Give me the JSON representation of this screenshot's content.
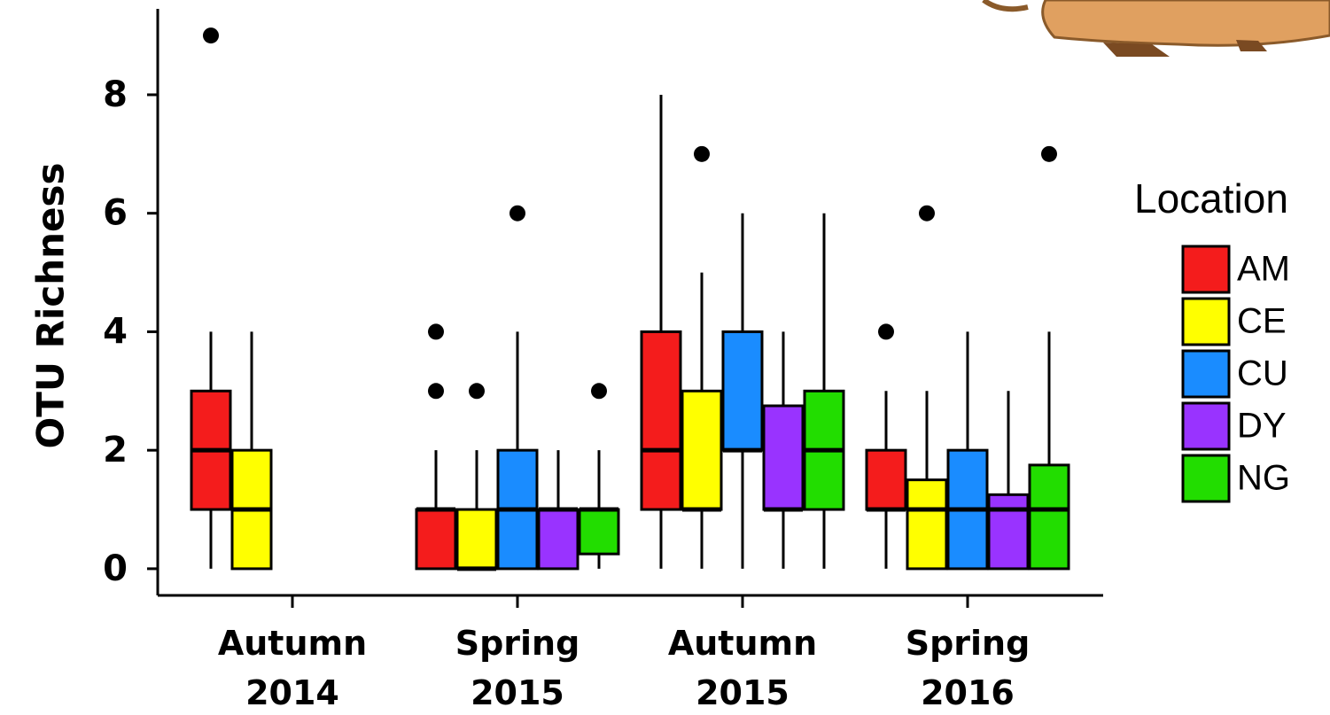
{
  "chart_data": {
    "type": "boxplot",
    "y_label": "OTU Richness",
    "legend_title": "Location",
    "categories": [
      [
        "Autumn",
        "2014"
      ],
      [
        "Spring",
        "2015"
      ],
      [
        "Autumn",
        "2015"
      ],
      [
        "Spring",
        "2016"
      ]
    ],
    "ylim": [
      -0.45,
      9.45
    ],
    "yticks": [
      0,
      2,
      4,
      6,
      8
    ],
    "series": [
      {
        "name": "AM",
        "color": "#f41c1c",
        "boxes": [
          {
            "min": 0,
            "q1": 1,
            "median": 2,
            "q3": 3,
            "max": 4,
            "outliers": [
              9
            ]
          },
          {
            "min": 0,
            "q1": 0,
            "median": 1,
            "q3": 1,
            "max": 2,
            "outliers": [
              4,
              3
            ]
          },
          {
            "min": 0,
            "q1": 1,
            "median": 2,
            "q3": 4,
            "max": 8,
            "outliers": []
          },
          {
            "min": 0,
            "q1": 1,
            "median": 1,
            "q3": 2,
            "max": 3,
            "outliers": [
              4
            ]
          }
        ]
      },
      {
        "name": "CE",
        "color": "#ffff00",
        "boxes": [
          {
            "min": 0,
            "q1": 0,
            "median": 1,
            "q3": 2,
            "max": 4,
            "outliers": []
          },
          {
            "min": 0,
            "q1": 0,
            "median": 0,
            "q3": 1,
            "max": 2,
            "outliers": [
              3
            ]
          },
          {
            "min": 0,
            "q1": 1,
            "median": 1,
            "q3": 3,
            "max": 5,
            "outliers": [
              7
            ]
          },
          {
            "min": 0,
            "q1": 0,
            "median": 1,
            "q3": 1.5,
            "max": 3,
            "outliers": [
              6
            ]
          }
        ]
      },
      {
        "name": "CU",
        "color": "#1a8cff",
        "boxes": [
          null,
          {
            "min": 0,
            "q1": 0,
            "median": 1,
            "q3": 2,
            "max": 4,
            "outliers": [
              6
            ]
          },
          {
            "min": 0,
            "q1": 2,
            "median": 2,
            "q3": 4,
            "max": 6,
            "outliers": []
          },
          {
            "min": 0,
            "q1": 0,
            "median": 1,
            "q3": 2,
            "max": 4,
            "outliers": []
          }
        ]
      },
      {
        "name": "DY",
        "color": "#9933ff",
        "boxes": [
          null,
          {
            "min": 0,
            "q1": 0,
            "median": 1,
            "q3": 1,
            "max": 2,
            "outliers": []
          },
          {
            "min": 0,
            "q1": 1,
            "median": 1,
            "q3": 2.75,
            "max": 4,
            "outliers": []
          },
          {
            "min": 0,
            "q1": 0,
            "median": 1,
            "q3": 1.25,
            "max": 3,
            "outliers": []
          }
        ]
      },
      {
        "name": "NG",
        "color": "#22dd00",
        "boxes": [
          null,
          {
            "min": 0,
            "q1": 0.25,
            "median": 1,
            "q3": 1,
            "max": 2,
            "outliers": [
              3
            ]
          },
          {
            "min": 0,
            "q1": 1,
            "median": 2,
            "q3": 3,
            "max": 6,
            "outliers": []
          },
          {
            "min": 0,
            "q1": 0,
            "median": 1,
            "q3": 1.75,
            "max": 4,
            "outliers": [
              7
            ]
          }
        ]
      }
    ]
  }
}
